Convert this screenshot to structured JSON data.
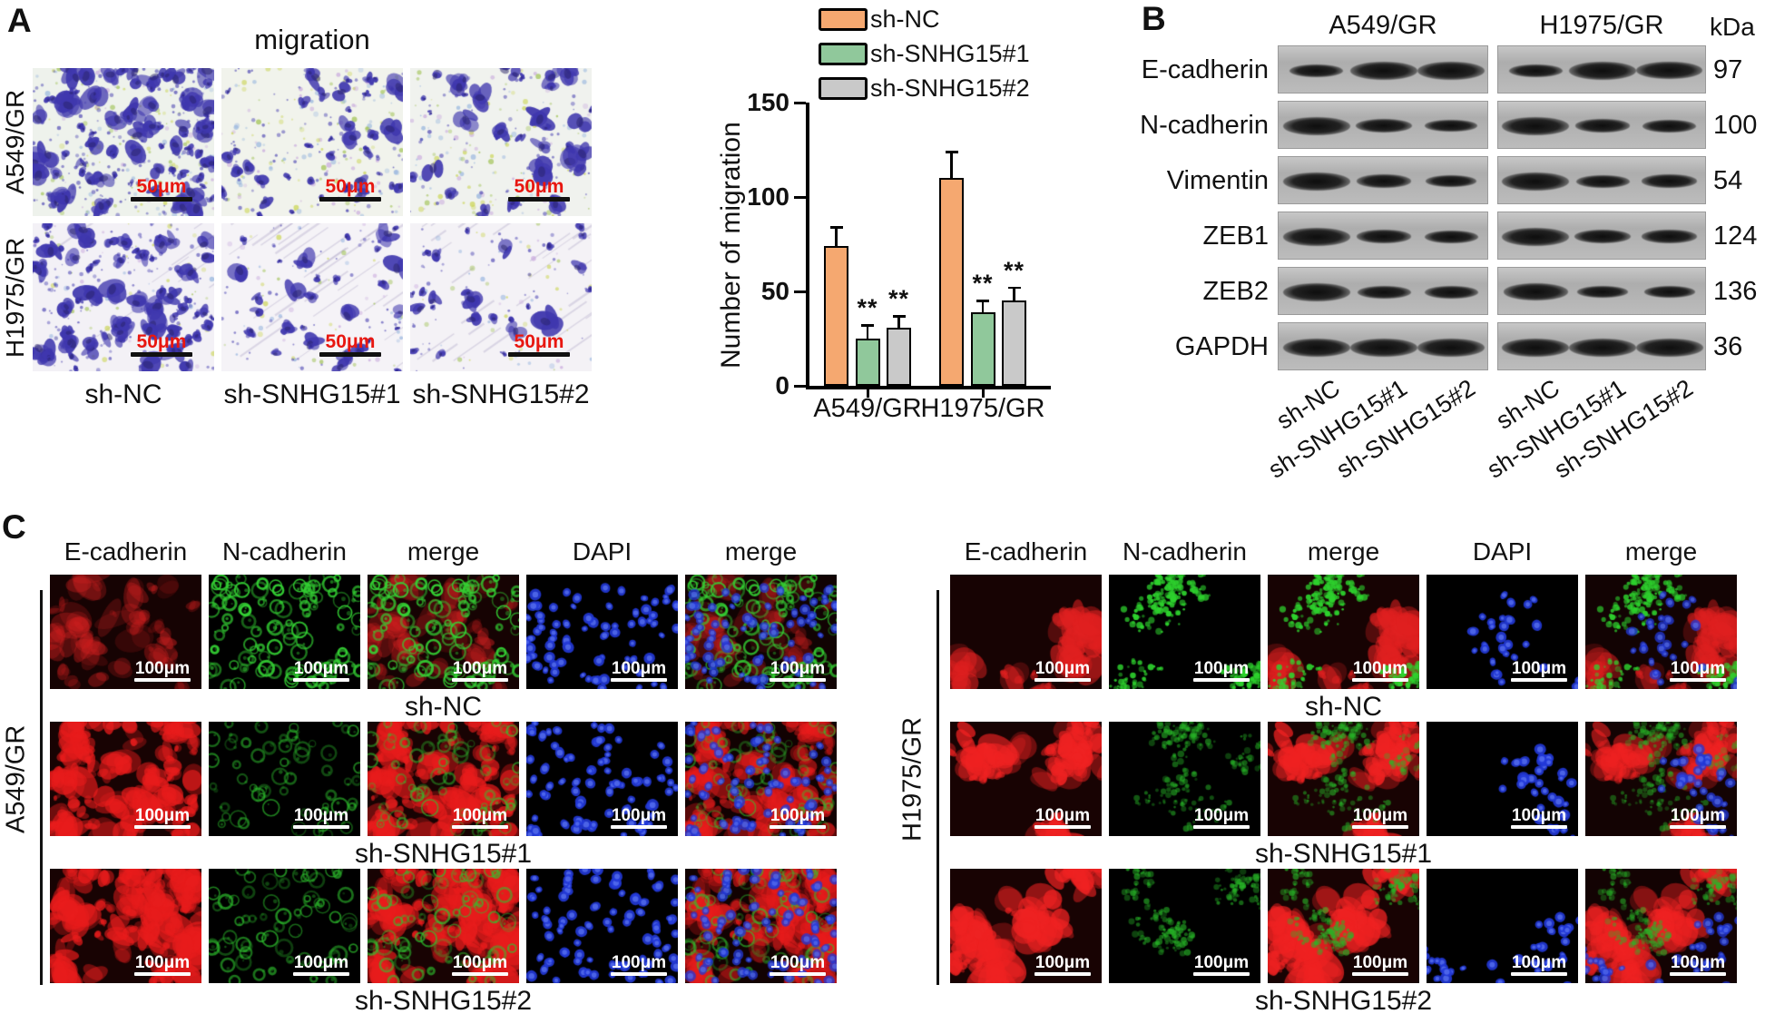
{
  "figure": {
    "panel_a": {
      "label": "A",
      "title": "migration",
      "row_labels": [
        "A549/GR",
        "H1975/GR"
      ],
      "col_labels": [
        "sh-NC",
        "sh-SNHG15#1",
        "sh-SNHG15#2"
      ],
      "scale_bar": {
        "text": "50μm",
        "text_color": "#e81710",
        "bar_color": "#111111"
      },
      "cell_color": "#3f37ae",
      "speckle_colors": [
        "#c9d44e",
        "#9cc04d",
        "#c7a6dd",
        "#8fb0dd"
      ],
      "micrograph_rows": [
        {
          "label": "A549/GR",
          "cells": [
            {
              "bg": "#eef2ec",
              "cells": 92,
              "speckles": 150,
              "streaks": 0
            },
            {
              "bg": "#f1f3ec",
              "cells": 40,
              "speckles": 170,
              "streaks": 0
            },
            {
              "bg": "#f0f2ee",
              "cells": 33,
              "speckles": 160,
              "streaks": 0
            }
          ]
        },
        {
          "label": "H1975/GR",
          "cells": [
            {
              "bg": "#f3f1f6",
              "cells": 78,
              "speckles": 70,
              "streaks": 10
            },
            {
              "bg": "#f5f3f7",
              "cells": 30,
              "speckles": 60,
              "streaks": 28
            },
            {
              "bg": "#f4f2f6",
              "cells": 26,
              "speckles": 55,
              "streaks": 26
            }
          ]
        }
      ]
    },
    "panel_b": {
      "label": "B",
      "group_headers": [
        "A549/GR",
        "H1975/GR"
      ],
      "kda_header": "kDa",
      "lane_labels": [
        "sh-NC",
        "sh-SNHG15#1",
        "sh-SNHG15#2"
      ],
      "rows": [
        {
          "protein": "E-cadherin",
          "kda": "97",
          "a549": [
            0.5,
            1.0,
            1.0
          ],
          "h1975": [
            0.5,
            1.0,
            0.95
          ]
        },
        {
          "protein": "N-cadherin",
          "kda": "100",
          "a549": [
            1.0,
            0.6,
            0.45
          ],
          "h1975": [
            1.0,
            0.55,
            0.5
          ]
        },
        {
          "protein": "Vimentin",
          "kda": "54",
          "a549": [
            1.0,
            0.55,
            0.4
          ],
          "h1975": [
            1.0,
            0.5,
            0.55
          ]
        },
        {
          "protein": "ZEB1",
          "kda": "124",
          "a549": [
            1.0,
            0.55,
            0.5
          ],
          "h1975": [
            1.0,
            0.6,
            0.55
          ]
        },
        {
          "protein": "ZEB2",
          "kda": "136",
          "a549": [
            1.0,
            0.5,
            0.5
          ],
          "h1975": [
            0.9,
            0.4,
            0.4
          ]
        },
        {
          "protein": "GAPDH",
          "kda": "36",
          "a549": [
            1.0,
            1.0,
            1.0
          ],
          "h1975": [
            1.0,
            1.0,
            1.0
          ]
        }
      ]
    },
    "panel_c": {
      "label": "C",
      "col_headers": [
        "E-cadherin",
        "N-cadherin",
        "merge",
        "DAPI",
        "merge"
      ],
      "row_labels": [
        "sh-NC",
        "sh-SNHG15#1",
        "sh-SNHG15#2"
      ],
      "scale_bar": {
        "text": "100μm",
        "color": "#ffffff"
      },
      "blocks": [
        {
          "cell_line": "A549/GR",
          "rows": [
            {
              "red": {
                "style": "fill",
                "color": "#d42020",
                "count": 40,
                "size": 14,
                "alpha": 0.45,
                "spread": "u"
              },
              "green": {
                "style": "ring",
                "color": "#35d435",
                "count": 95,
                "alpha": 0.95,
                "spread": "u"
              },
              "blue": {
                "style": "nuc",
                "color": "#2238d8",
                "count": 75,
                "spread": "u"
              }
            },
            {
              "red": {
                "style": "fill",
                "color": "#e81c1c",
                "count": 85,
                "size": 15,
                "alpha": 0.9,
                "spread": "u"
              },
              "green": {
                "style": "ring",
                "color": "#2fc42f",
                "count": 55,
                "alpha": 0.65,
                "spread": "u"
              },
              "blue": {
                "style": "nuc",
                "color": "#2238d8",
                "count": 80,
                "spread": "u"
              }
            },
            {
              "red": {
                "style": "fill",
                "color": "#e81c1c",
                "count": 90,
                "size": 15,
                "alpha": 0.92,
                "spread": "u"
              },
              "green": {
                "style": "ring",
                "color": "#2fc42f",
                "count": 60,
                "alpha": 0.7,
                "spread": "u"
              },
              "blue": {
                "style": "nuc",
                "color": "#2238d8",
                "count": 85,
                "spread": "u"
              }
            }
          ]
        },
        {
          "cell_line": "H1975/GR",
          "rows": [
            {
              "red": {
                "style": "fill",
                "color": "#e02020",
                "count": 45,
                "size": 16,
                "alpha": 0.8,
                "spread": "c"
              },
              "green": {
                "style": "dots",
                "color": "#2ed32e",
                "count": 70,
                "alpha": 0.95,
                "spread": "c"
              },
              "blue": {
                "style": "nuc",
                "color": "#2238d8",
                "count": 32,
                "spread": "c"
              }
            },
            {
              "red": {
                "style": "fill",
                "color": "#ef2222",
                "count": 60,
                "size": 17,
                "alpha": 0.9,
                "spread": "c"
              },
              "green": {
                "style": "dots",
                "color": "#28b828",
                "count": 45,
                "alpha": 0.6,
                "spread": "c"
              },
              "blue": {
                "style": "nuc",
                "color": "#2238d8",
                "count": 36,
                "spread": "c"
              }
            },
            {
              "red": {
                "style": "fill",
                "color": "#ef2222",
                "count": 65,
                "size": 17,
                "alpha": 0.9,
                "spread": "c"
              },
              "green": {
                "style": "dots",
                "color": "#28b828",
                "count": 50,
                "alpha": 0.65,
                "spread": "c"
              },
              "blue": {
                "style": "nuc",
                "color": "#2238d8",
                "count": 40,
                "spread": "c"
              }
            }
          ]
        }
      ]
    }
  },
  "chart_data": {
    "type": "bar",
    "title": "",
    "xlabel": "",
    "ylabel": "Number of migration",
    "categories": [
      "A549/GR",
      "H1975/GR"
    ],
    "series": [
      {
        "name": "sh-NC",
        "color": "#f5a870",
        "values": [
          74,
          110
        ],
        "errors": [
          10,
          14
        ],
        "significance": [
          "",
          ""
        ]
      },
      {
        "name": "sh-SNHG15#1",
        "color": "#90c89b",
        "values": [
          25,
          39
        ],
        "errors": [
          7,
          6
        ],
        "significance": [
          "**",
          "**"
        ]
      },
      {
        "name": "sh-SNHG15#2",
        "color": "#c9c9c9",
        "values": [
          31,
          45
        ],
        "errors": [
          6,
          7
        ],
        "significance": [
          "**",
          "**"
        ]
      }
    ],
    "ylim": [
      0,
      150
    ],
    "yticks": [
      0,
      50,
      100,
      150
    ],
    "grid": false,
    "legend_position": "top-right"
  }
}
